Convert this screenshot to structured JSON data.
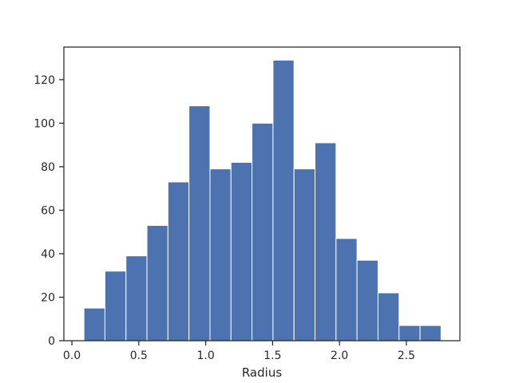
{
  "chart_data": {
    "type": "histogram",
    "title": "",
    "xlabel": "Radius",
    "ylabel": "",
    "bar_color": "#4c72b0",
    "edge_color": "#ffffff",
    "xlim": [
      -0.06,
      2.9
    ],
    "ylim": [
      0,
      135
    ],
    "xticks": [
      0.0,
      0.5,
      1.0,
      1.5,
      2.0,
      2.5
    ],
    "xtick_labels": [
      "0.0",
      "0.5",
      "1.0",
      "1.5",
      "2.0",
      "2.5"
    ],
    "yticks": [
      0,
      20,
      40,
      60,
      80,
      100,
      120
    ],
    "ytick_labels": [
      "0",
      "20",
      "40",
      "60",
      "80",
      "100",
      "120"
    ],
    "bin_edges": [
      0.09,
      0.247,
      0.404,
      0.561,
      0.718,
      0.875,
      1.032,
      1.189,
      1.346,
      1.503,
      1.66,
      1.817,
      1.974,
      2.131,
      2.288,
      2.445,
      2.602,
      2.759
    ],
    "values": [
      15,
      32,
      39,
      53,
      73,
      108,
      79,
      82,
      100,
      129,
      79,
      91,
      47,
      37,
      22,
      7,
      7
    ],
    "grid": false,
    "legend": "none"
  }
}
